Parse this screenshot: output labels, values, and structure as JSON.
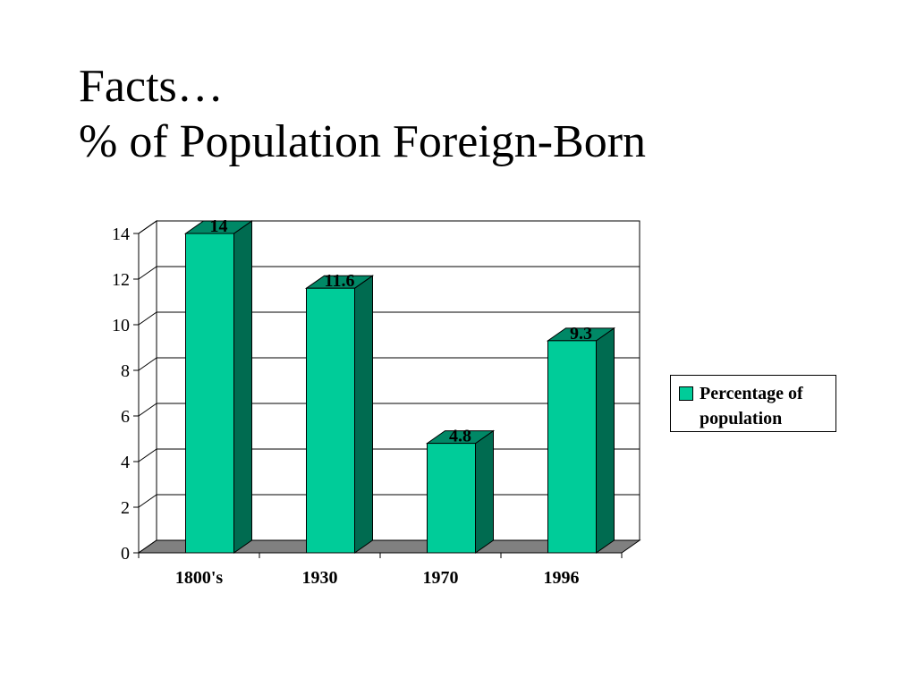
{
  "title": {
    "line1": "Facts…",
    "line2": "% of Population Foreign-Born"
  },
  "colors": {
    "bar_front": "#00CC99",
    "bar_side": "#006B50",
    "bar_top": "#008866",
    "floor": "#808080",
    "gridline": "#000000"
  },
  "chart_data": {
    "type": "bar",
    "style": "3d-clustered-column",
    "categories": [
      "1800's",
      "1930",
      "1970",
      "1996"
    ],
    "series": [
      {
        "name": "Percentage of population",
        "values": [
          14,
          11.6,
          4.8,
          9.3
        ]
      }
    ],
    "data_labels": [
      "14",
      "11.6",
      "4.8",
      "9.3"
    ],
    "ylim": [
      0,
      14
    ],
    "yticks": [
      "0",
      "2",
      "4",
      "6",
      "8",
      "10",
      "12",
      "14"
    ],
    "grid": true,
    "legend_position": "right",
    "legend": {
      "entries": [
        "Percentage of population"
      ]
    }
  }
}
